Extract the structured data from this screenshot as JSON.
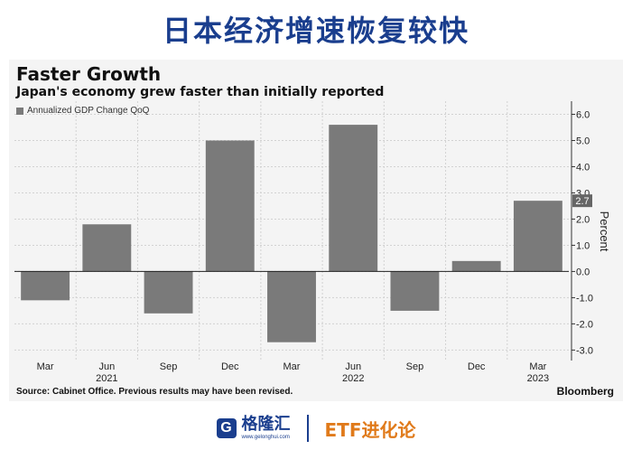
{
  "banner": {
    "title": "日本经济增速恢复较快"
  },
  "chart_data": {
    "type": "bar",
    "title": "Faster Growth",
    "subtitle": "Japan's economy grew faster than initially reported",
    "legend": [
      "Annualized GDP Change QoQ"
    ],
    "categories": [
      "Mar",
      "Jun",
      "Sep",
      "Dec",
      "Mar",
      "Jun",
      "Sep",
      "Dec",
      "Mar"
    ],
    "year_labels": [
      {
        "label": "2021",
        "category_index": 1
      },
      {
        "label": "2022",
        "category_index": 5
      },
      {
        "label": "2023",
        "category_index": 8
      }
    ],
    "values": [
      -1.1,
      1.8,
      -1.6,
      5.0,
      -2.7,
      5.6,
      -1.5,
      0.4,
      2.7
    ],
    "ylabel": "Percent",
    "ylim": [
      -3.4,
      6.5
    ],
    "yticks": [
      6.0,
      5.0,
      4.0,
      3.0,
      2.0,
      1.0,
      0.0,
      -1.0,
      -2.0,
      -3.0
    ],
    "ytick_labels": [
      "6.0",
      "5.0",
      "4.0",
      "3.0",
      "2.0",
      "1.0",
      "0.0",
      "-1.0",
      "-2.0",
      "-3.0"
    ],
    "last_value_label": "2.7",
    "y_axis_position": "right",
    "grid": true,
    "bar_color": "#7a7a7a",
    "source": "Source: Cabinet Office. Previous results may have been revised.",
    "brand": "Bloomberg"
  },
  "footer": {
    "logo_mark": "G",
    "logo_text": "格隆汇",
    "logo_url": "www.gelonghui.com",
    "right_text": "ETF进化论"
  }
}
